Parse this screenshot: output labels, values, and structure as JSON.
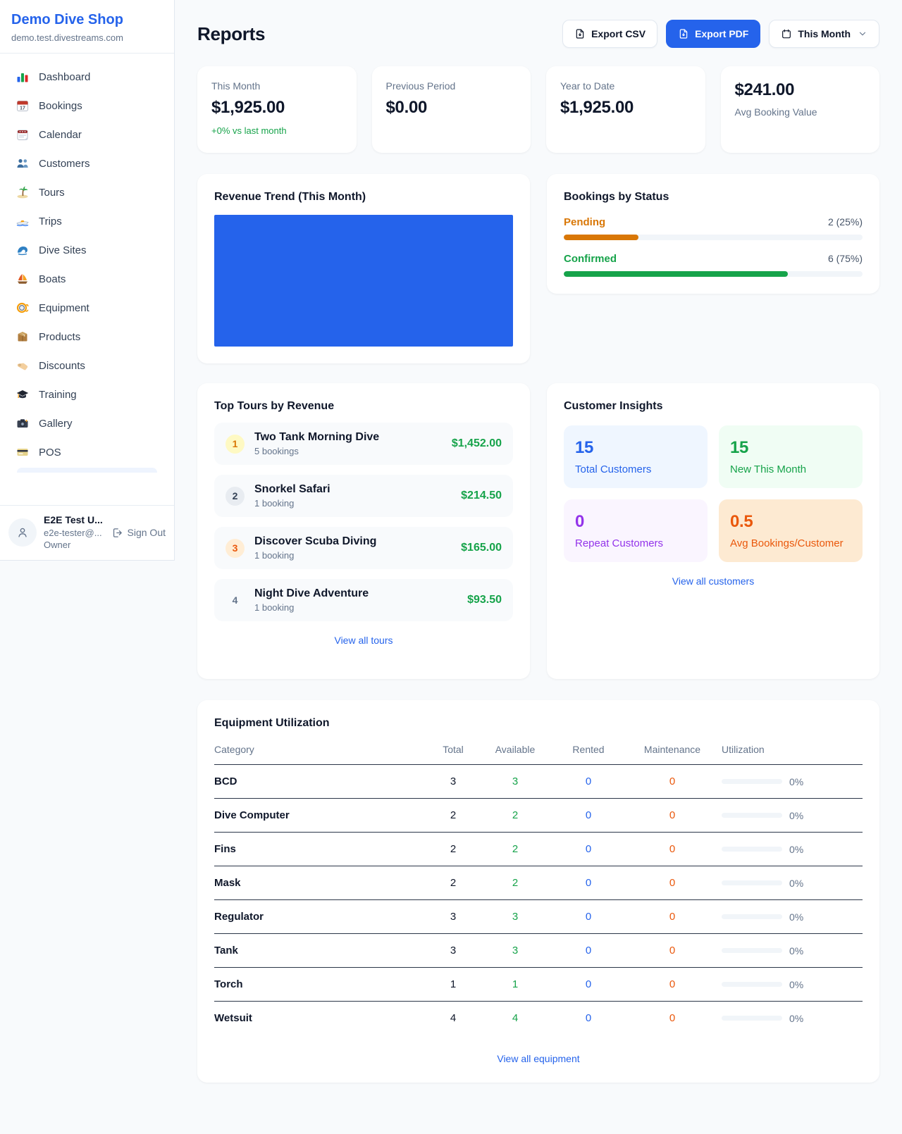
{
  "colors": {
    "accent_blue": "#2563eb",
    "success_green": "#16a34a",
    "pending_orange": "#d97706",
    "maintenance_orange": "#ea580c",
    "purple": "#9333ea",
    "page_bg": "#f8fafc"
  },
  "sidebar": {
    "shop_name": "Demo Dive Shop",
    "shop_domain": "demo.test.divestreams.com",
    "items": [
      {
        "icon": "bar-chart-icon",
        "label": "Dashboard"
      },
      {
        "icon": "calendar-date-icon",
        "label": "Bookings"
      },
      {
        "icon": "notepad-calendar-icon",
        "label": "Calendar"
      },
      {
        "icon": "people-icon",
        "label": "Customers"
      },
      {
        "icon": "palm-island-icon",
        "label": "Tours"
      },
      {
        "icon": "speedboat-icon",
        "label": "Trips"
      },
      {
        "icon": "wave-icon",
        "label": "Dive Sites"
      },
      {
        "icon": "sailboat-icon",
        "label": "Boats"
      },
      {
        "icon": "dive-mask-icon",
        "label": "Equipment"
      },
      {
        "icon": "package-icon",
        "label": "Products"
      },
      {
        "icon": "tag-icon",
        "label": "Discounts"
      },
      {
        "icon": "graduation-cap-icon",
        "label": "Training"
      },
      {
        "icon": "camera-icon",
        "label": "Gallery"
      },
      {
        "icon": "credit-card-icon",
        "label": "POS"
      }
    ],
    "user": {
      "name": "E2E Test U...",
      "email": "e2e-tester@...",
      "role": "Owner",
      "sign_out_label": "Sign Out"
    }
  },
  "header": {
    "title": "Reports",
    "export_csv_label": "Export CSV",
    "export_pdf_label": "Export PDF",
    "period_label": "This Month"
  },
  "stats": {
    "this_month": {
      "label": "This Month",
      "value": "$1,925.00",
      "delta": "+0% vs last month"
    },
    "previous_period": {
      "label": "Previous Period",
      "value": "$0.00"
    },
    "year_to_date": {
      "label": "Year to Date",
      "value": "$1,925.00"
    },
    "avg_booking": {
      "value": "$241.00",
      "label": "Avg Booking Value"
    }
  },
  "revenue_trend": {
    "title": "Revenue Trend (This Month)",
    "bar_color": "#2563eb"
  },
  "bookings_by_status": {
    "title": "Bookings by Status",
    "rows": [
      {
        "label": "Pending",
        "count": "2 (25%)",
        "pct": 25
      },
      {
        "label": "Confirmed",
        "count": "6 (75%)",
        "pct": 75
      }
    ]
  },
  "top_tours": {
    "title": "Top Tours by Revenue",
    "rows": [
      {
        "rank": "1",
        "name": "Two Tank Morning Dive",
        "bookings": "5 bookings",
        "revenue": "$1,452.00"
      },
      {
        "rank": "2",
        "name": "Snorkel Safari",
        "bookings": "1 booking",
        "revenue": "$214.50"
      },
      {
        "rank": "3",
        "name": "Discover Scuba Diving",
        "bookings": "1 booking",
        "revenue": "$165.00"
      },
      {
        "rank": "4",
        "name": "Night Dive Adventure",
        "bookings": "1 booking",
        "revenue": "$93.50"
      }
    ],
    "view_all": "View all tours"
  },
  "customer_insights": {
    "title": "Customer Insights",
    "tiles": [
      {
        "value": "15",
        "label": "Total Customers"
      },
      {
        "value": "15",
        "label": "New This Month"
      },
      {
        "value": "0",
        "label": "Repeat Customers"
      },
      {
        "value": "0.5",
        "label": "Avg Bookings/Customer"
      }
    ],
    "view_all": "View all customers"
  },
  "equipment": {
    "title": "Equipment Utilization",
    "columns": [
      "Category",
      "Total",
      "Available",
      "Rented",
      "Maintenance",
      "Utilization"
    ],
    "rows": [
      {
        "category": "BCD",
        "total": "3",
        "available": "3",
        "rented": "0",
        "maintenance": "0",
        "utilization": "0%"
      },
      {
        "category": "Dive Computer",
        "total": "2",
        "available": "2",
        "rented": "0",
        "maintenance": "0",
        "utilization": "0%"
      },
      {
        "category": "Fins",
        "total": "2",
        "available": "2",
        "rented": "0",
        "maintenance": "0",
        "utilization": "0%"
      },
      {
        "category": "Mask",
        "total": "2",
        "available": "2",
        "rented": "0",
        "maintenance": "0",
        "utilization": "0%"
      },
      {
        "category": "Regulator",
        "total": "3",
        "available": "3",
        "rented": "0",
        "maintenance": "0",
        "utilization": "0%"
      },
      {
        "category": "Tank",
        "total": "3",
        "available": "3",
        "rented": "0",
        "maintenance": "0",
        "utilization": "0%"
      },
      {
        "category": "Torch",
        "total": "1",
        "available": "1",
        "rented": "0",
        "maintenance": "0",
        "utilization": "0%"
      },
      {
        "category": "Wetsuit",
        "total": "4",
        "available": "4",
        "rented": "0",
        "maintenance": "0",
        "utilization": "0%"
      }
    ],
    "view_all": "View all equipment"
  }
}
